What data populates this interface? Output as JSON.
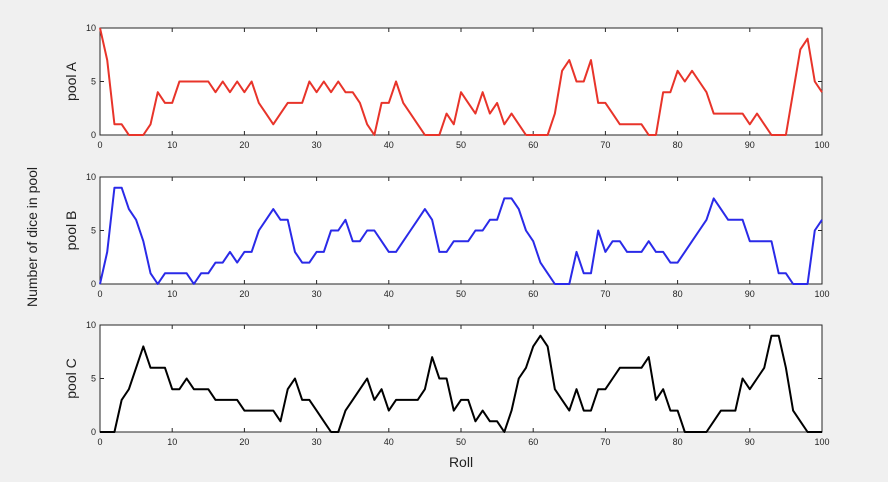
{
  "figure": {
    "ylabel": "Number of dice in pool",
    "xlabel": "Roll"
  },
  "chart_data": [
    {
      "type": "line",
      "ylabel": "pool A",
      "xlabel": "",
      "xlim": [
        0,
        100
      ],
      "ylim": [
        0,
        10
      ],
      "xticks": [
        0,
        10,
        20,
        30,
        40,
        50,
        60,
        70,
        80,
        90,
        100
      ],
      "yticks": [
        0,
        5,
        10
      ],
      "grid": false,
      "color": "#e8342a",
      "x": [
        0,
        1,
        2,
        3,
        4,
        5,
        6,
        7,
        8,
        9,
        10,
        11,
        12,
        13,
        14,
        15,
        16,
        17,
        18,
        19,
        20,
        21,
        22,
        23,
        24,
        25,
        26,
        27,
        28,
        29,
        30,
        31,
        32,
        33,
        34,
        35,
        36,
        37,
        38,
        39,
        40,
        41,
        42,
        43,
        44,
        45,
        46,
        47,
        48,
        49,
        50,
        51,
        52,
        53,
        54,
        55,
        56,
        57,
        58,
        59,
        60,
        61,
        62,
        63,
        64,
        65,
        66,
        67,
        68,
        69,
        70,
        71,
        72,
        73,
        74,
        75,
        76,
        77,
        78,
        79,
        80,
        81,
        82,
        83,
        84,
        85,
        86,
        87,
        88,
        89,
        90,
        91,
        92,
        93,
        94,
        95,
        96,
        97,
        98,
        99,
        100
      ],
      "values": [
        10,
        7,
        1,
        1,
        0,
        0,
        0,
        1,
        4,
        3,
        3,
        5,
        5,
        5,
        5,
        5,
        4,
        5,
        4,
        5,
        4,
        5,
        3,
        2,
        1,
        2,
        3,
        3,
        3,
        5,
        4,
        5,
        4,
        5,
        4,
        4,
        3,
        1,
        0,
        3,
        3,
        5,
        3,
        2,
        1,
        0,
        0,
        0,
        2,
        1,
        4,
        3,
        2,
        4,
        2,
        3,
        1,
        2,
        1,
        0,
        0,
        0,
        0,
        2,
        6,
        7,
        5,
        5,
        7,
        3,
        3,
        2,
        1,
        1,
        1,
        1,
        0,
        0,
        4,
        4,
        6,
        5,
        6,
        5,
        4,
        2,
        2,
        2,
        2,
        2,
        1,
        2,
        1,
        0,
        0,
        0,
        4,
        8,
        9,
        5,
        4
      ]
    },
    {
      "type": "line",
      "ylabel": "pool B",
      "xlabel": "",
      "xlim": [
        0,
        100
      ],
      "ylim": [
        0,
        10
      ],
      "xticks": [
        0,
        10,
        20,
        30,
        40,
        50,
        60,
        70,
        80,
        90,
        100
      ],
      "yticks": [
        0,
        5,
        10
      ],
      "grid": false,
      "color": "#2a2ae8",
      "x": [
        0,
        1,
        2,
        3,
        4,
        5,
        6,
        7,
        8,
        9,
        10,
        11,
        12,
        13,
        14,
        15,
        16,
        17,
        18,
        19,
        20,
        21,
        22,
        23,
        24,
        25,
        26,
        27,
        28,
        29,
        30,
        31,
        32,
        33,
        34,
        35,
        36,
        37,
        38,
        39,
        40,
        41,
        42,
        43,
        44,
        45,
        46,
        47,
        48,
        49,
        50,
        51,
        52,
        53,
        54,
        55,
        56,
        57,
        58,
        59,
        60,
        61,
        62,
        63,
        64,
        65,
        66,
        67,
        68,
        69,
        70,
        71,
        72,
        73,
        74,
        75,
        76,
        77,
        78,
        79,
        80,
        81,
        82,
        83,
        84,
        85,
        86,
        87,
        88,
        89,
        90,
        91,
        92,
        93,
        94,
        95,
        96,
        97,
        98,
        99,
        100
      ],
      "values": [
        0,
        3,
        9,
        9,
        7,
        6,
        4,
        1,
        0,
        1,
        1,
        1,
        1,
        0,
        1,
        1,
        2,
        2,
        3,
        2,
        3,
        3,
        5,
        6,
        7,
        6,
        6,
        3,
        2,
        2,
        3,
        3,
        5,
        5,
        6,
        4,
        4,
        5,
        5,
        4,
        3,
        3,
        4,
        5,
        6,
        7,
        6,
        3,
        3,
        4,
        4,
        4,
        5,
        5,
        6,
        6,
        8,
        8,
        7,
        5,
        4,
        2,
        1,
        0,
        0,
        0,
        3,
        1,
        1,
        5,
        3,
        4,
        4,
        3,
        3,
        3,
        4,
        3,
        3,
        2,
        2,
        3,
        4,
        5,
        6,
        8,
        7,
        6,
        6,
        6,
        4,
        4,
        4,
        4,
        1,
        1,
        0,
        0,
        0,
        5,
        6
      ]
    },
    {
      "type": "line",
      "ylabel": "pool C",
      "xlabel": "",
      "xlim": [
        0,
        100
      ],
      "ylim": [
        0,
        10
      ],
      "xticks": [
        0,
        10,
        20,
        30,
        40,
        50,
        60,
        70,
        80,
        90,
        100
      ],
      "yticks": [
        0,
        5,
        10
      ],
      "grid": false,
      "color": "#000000",
      "x": [
        0,
        1,
        2,
        3,
        4,
        5,
        6,
        7,
        8,
        9,
        10,
        11,
        12,
        13,
        14,
        15,
        16,
        17,
        18,
        19,
        20,
        21,
        22,
        23,
        24,
        25,
        26,
        27,
        28,
        29,
        30,
        31,
        32,
        33,
        34,
        35,
        36,
        37,
        38,
        39,
        40,
        41,
        42,
        43,
        44,
        45,
        46,
        47,
        48,
        49,
        50,
        51,
        52,
        53,
        54,
        55,
        56,
        57,
        58,
        59,
        60,
        61,
        62,
        63,
        64,
        65,
        66,
        67,
        68,
        69,
        70,
        71,
        72,
        73,
        74,
        75,
        76,
        77,
        78,
        79,
        80,
        81,
        82,
        83,
        84,
        85,
        86,
        87,
        88,
        89,
        90,
        91,
        92,
        93,
        94,
        95,
        96,
        97,
        98,
        99,
        100
      ],
      "values": [
        0,
        0,
        0,
        3,
        4,
        6,
        8,
        6,
        6,
        6,
        4,
        4,
        5,
        4,
        4,
        4,
        3,
        3,
        3,
        3,
        2,
        2,
        2,
        2,
        2,
        1,
        4,
        5,
        3,
        3,
        2,
        1,
        0,
        0,
        2,
        3,
        4,
        5,
        3,
        4,
        2,
        3,
        3,
        3,
        3,
        4,
        7,
        5,
        5,
        2,
        3,
        3,
        1,
        2,
        1,
        1,
        0,
        2,
        5,
        6,
        8,
        9,
        8,
        4,
        3,
        2,
        4,
        2,
        2,
        4,
        4,
        5,
        6,
        6,
        6,
        6,
        7,
        3,
        4,
        2,
        2,
        0,
        0,
        0,
        0,
        1,
        2,
        2,
        2,
        5,
        4,
        5,
        6,
        9,
        9,
        6,
        2,
        1,
        0,
        0,
        0
      ]
    }
  ]
}
